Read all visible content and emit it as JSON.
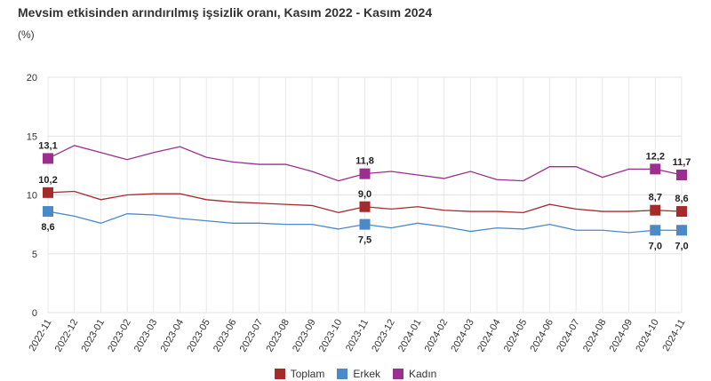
{
  "chart_data": {
    "type": "line",
    "title": "Mevsim etkisinden arındırılmış işsizlik oranı, Kasım 2022 - Kasım 2024",
    "subtitle": "(%)",
    "x": [
      "2022-11",
      "2022-12",
      "2023-01",
      "2023-02",
      "2023-03",
      "2023-04",
      "2023-05",
      "2023-06",
      "2023-07",
      "2023-08",
      "2023-09",
      "2023-10",
      "2023-11",
      "2023-12",
      "2024-01",
      "2024-02",
      "2024-03",
      "2024-04",
      "2024-05",
      "2024-06",
      "2024-07",
      "2024-08",
      "2024-09",
      "2024-10",
      "2024-11"
    ],
    "ylim": [
      0,
      20
    ],
    "yticks": [
      0,
      5,
      10,
      15,
      20
    ],
    "grid": true,
    "legend_position": "bottom",
    "series": [
      {
        "name": "Toplam",
        "color": "#a52a2a",
        "values": [
          10.2,
          10.3,
          9.6,
          10.0,
          10.1,
          10.1,
          9.6,
          9.4,
          9.3,
          9.2,
          9.1,
          8.5,
          9.0,
          8.8,
          9.0,
          8.7,
          8.6,
          8.6,
          8.5,
          9.2,
          8.8,
          8.6,
          8.6,
          8.7,
          8.6
        ],
        "labels": [
          {
            "index": 0,
            "text": "10,2"
          },
          {
            "index": 12,
            "text": "9,0"
          },
          {
            "index": 23,
            "text": "8,7"
          },
          {
            "index": 24,
            "text": "8,6"
          }
        ]
      },
      {
        "name": "Erkek",
        "color": "#4a8ac9",
        "values": [
          8.6,
          8.2,
          7.6,
          8.4,
          8.3,
          8.0,
          7.8,
          7.6,
          7.6,
          7.5,
          7.5,
          7.1,
          7.5,
          7.2,
          7.6,
          7.3,
          6.9,
          7.2,
          7.1,
          7.5,
          7.0,
          7.0,
          6.8,
          7.0,
          7.0
        ],
        "labels": [
          {
            "index": 0,
            "text": "8,6"
          },
          {
            "index": 12,
            "text": "7,5"
          },
          {
            "index": 23,
            "text": "7,0"
          },
          {
            "index": 24,
            "text": "7,0"
          }
        ]
      },
      {
        "name": "Kadın",
        "color": "#9b2f8f",
        "values": [
          13.1,
          14.2,
          13.6,
          13.0,
          13.6,
          14.1,
          13.2,
          12.8,
          12.6,
          12.6,
          12.0,
          11.2,
          11.8,
          12.0,
          11.7,
          11.4,
          12.0,
          11.3,
          11.2,
          12.4,
          12.4,
          11.5,
          12.2,
          12.2,
          11.7
        ],
        "labels": [
          {
            "index": 0,
            "text": "13,1"
          },
          {
            "index": 12,
            "text": "11,8"
          },
          {
            "index": 23,
            "text": "12,2"
          },
          {
            "index": 24,
            "text": "11,7"
          }
        ]
      }
    ]
  }
}
